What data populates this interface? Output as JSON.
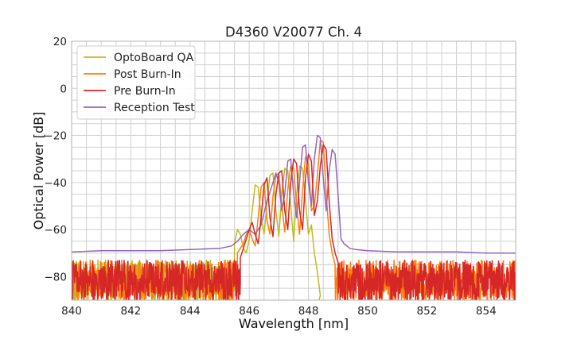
{
  "chart_data": {
    "type": "line",
    "title": "D4360 V20077 Ch. 4",
    "xlabel": "Wavelength [nm]",
    "ylabel": "Optical Power [dB]",
    "xlim": [
      840,
      855
    ],
    "ylim": [
      -90,
      20
    ],
    "xticks": [
      840,
      842,
      844,
      846,
      848,
      850,
      852,
      854
    ],
    "yticks": [
      20,
      0,
      -20,
      -40,
      -60,
      -80
    ],
    "ytick_labels": [
      "20",
      "0",
      "−20",
      "−40",
      "−60",
      "−80"
    ],
    "grid": true,
    "legend_position": "top-left",
    "series": [
      {
        "name": "OptoBoard QA",
        "color": "#bcbd22",
        "noise": {
          "start": 840.0,
          "end": 845.5,
          "floor": -73,
          "range": 18
        },
        "x": [
          845.5,
          845.6,
          845.7,
          845.8,
          845.9,
          846.0,
          846.1,
          846.2,
          846.3,
          846.4,
          846.5,
          846.6,
          846.7,
          846.8,
          846.9,
          847.0,
          847.1,
          847.2,
          847.3,
          847.4,
          847.5,
          847.6,
          847.7,
          847.8,
          847.9,
          848.0,
          848.1,
          848.2,
          848.3,
          848.4
        ],
        "y": [
          -66,
          -60,
          -62,
          -68,
          -70,
          -64,
          -52,
          -41,
          -42,
          -55,
          -62,
          -49,
          -37,
          -36,
          -52,
          -63,
          -45,
          -34,
          -35,
          -50,
          -65,
          -45,
          -33,
          -34,
          -48,
          -62,
          -58,
          -70,
          -78,
          -88
        ],
        "noise_after": {
          "start": 848.35,
          "end": 848.85,
          "floor": -90,
          "range": 8
        }
      },
      {
        "name": "Post Burn-In",
        "color": "#ff7f0e",
        "noise": {
          "start": 840.0,
          "end": 845.6,
          "floor": -73,
          "range": 18
        },
        "x": [
          845.6,
          845.7,
          845.8,
          845.9,
          846.0,
          846.1,
          846.2,
          846.3,
          846.4,
          846.5,
          846.6,
          846.7,
          846.8,
          846.9,
          847.0,
          847.1,
          847.2,
          847.3,
          847.4,
          847.5,
          847.6,
          847.7,
          847.8,
          847.9,
          848.0,
          848.1,
          848.2,
          848.3,
          848.4,
          848.5,
          848.6,
          848.7,
          848.8,
          848.9
        ],
        "y": [
          -70,
          -68,
          -66,
          -62,
          -60,
          -64,
          -67,
          -55,
          -42,
          -40,
          -56,
          -62,
          -46,
          -37,
          -36,
          -50,
          -61,
          -43,
          -33,
          -34,
          -50,
          -62,
          -43,
          -29,
          -32,
          -52,
          -50,
          -37,
          -22,
          -23,
          -45,
          -62,
          -70,
          -75
        ],
        "noise_after": {
          "start": 848.9,
          "end": 855.0,
          "floor": -73,
          "range": 18
        }
      },
      {
        "name": "Pre Burn-In",
        "color": "#d62728",
        "noise": {
          "start": 840.0,
          "end": 845.7,
          "floor": -73,
          "range": 18
        },
        "x": [
          845.7,
          845.8,
          845.9,
          846.0,
          846.1,
          846.2,
          846.3,
          846.4,
          846.5,
          846.6,
          846.7,
          846.8,
          846.9,
          847.0,
          847.1,
          847.2,
          847.3,
          847.4,
          847.5,
          847.6,
          847.7,
          847.8,
          847.9,
          848.0,
          848.1,
          848.2,
          848.3,
          848.4,
          848.5,
          848.6,
          848.7,
          848.8,
          848.9,
          849.0
        ],
        "y": [
          -72,
          -68,
          -64,
          -60,
          -57,
          -62,
          -66,
          -55,
          -41,
          -38,
          -55,
          -63,
          -45,
          -36,
          -35,
          -52,
          -60,
          -40,
          -30,
          -32,
          -52,
          -60,
          -38,
          -28,
          -31,
          -54,
          -48,
          -33,
          -24,
          -26,
          -48,
          -64,
          -70,
          -74
        ],
        "noise_after": {
          "start": 849.0,
          "end": 855.0,
          "floor": -73,
          "range": 18
        }
      },
      {
        "name": "Reception Test",
        "color": "#9467bd",
        "x": [
          840.0,
          841.0,
          842.0,
          843.0,
          844.0,
          845.0,
          845.4,
          845.6,
          845.8,
          846.0,
          846.2,
          846.4,
          846.6,
          846.8,
          846.9,
          847.0,
          847.1,
          847.2,
          847.3,
          847.4,
          847.5,
          847.6,
          847.7,
          847.8,
          847.9,
          848.0,
          848.1,
          848.2,
          848.3,
          848.4,
          848.5,
          848.6,
          848.7,
          848.8,
          848.9,
          849.0,
          849.1,
          849.2,
          849.4,
          849.6,
          850.0,
          851.0,
          852.0,
          853.0,
          854.0,
          855.0
        ],
        "y": [
          -69.5,
          -69,
          -69,
          -69,
          -68.5,
          -68,
          -67,
          -65,
          -62,
          -60,
          -62,
          -58,
          -48,
          -40,
          -36,
          -40,
          -52,
          -45,
          -31,
          -30,
          -45,
          -55,
          -40,
          -25,
          -24,
          -40,
          -50,
          -30,
          -20,
          -21,
          -38,
          -52,
          -35,
          -26,
          -28,
          -45,
          -64,
          -66,
          -68,
          -68.5,
          -69,
          -69.5,
          -69.5,
          -69.5,
          -70,
          -70
        ]
      }
    ]
  }
}
